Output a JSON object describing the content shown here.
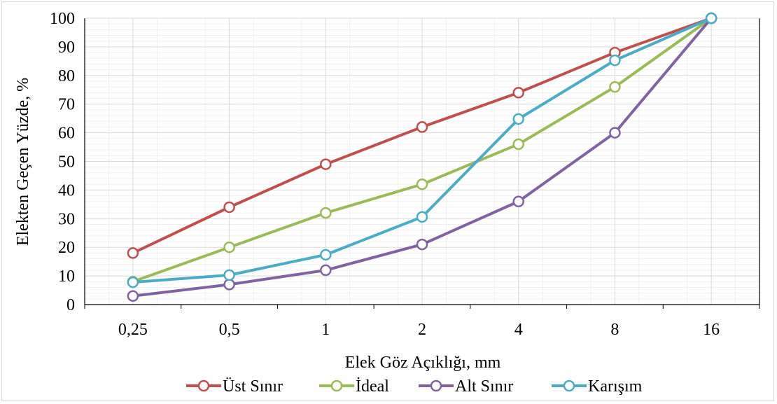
{
  "chart_data": {
    "type": "line",
    "categories": [
      "0,25",
      "0,5",
      "1",
      "2",
      "4",
      "8",
      "16"
    ],
    "xlabel": "Elek Göz Açıklığı, mm",
    "ylabel": "Elekten Geçen Yüzde, %",
    "ylim": [
      0,
      100
    ],
    "yticks": [
      "0",
      "10",
      "20",
      "30",
      "40",
      "50",
      "60",
      "70",
      "80",
      "90",
      "100"
    ],
    "grid": "on",
    "legend_position": "bottom",
    "series": [
      {
        "name": "Üst Sınır",
        "color": "#C0504D",
        "values": [
          18,
          34,
          49,
          62,
          74,
          88,
          100
        ]
      },
      {
        "name": "İdeal",
        "color": "#9BBB59",
        "values": [
          8,
          20,
          32,
          42,
          56,
          76,
          100
        ]
      },
      {
        "name": "Alt Sınır",
        "color": "#8064A2",
        "values": [
          3,
          7,
          12,
          21,
          36,
          60,
          100
        ]
      },
      {
        "name": "Karışım",
        "color": "#4BACC6",
        "values": [
          7.8,
          10.3,
          17.4,
          30.6,
          64.8,
          85.3,
          100
        ]
      }
    ]
  }
}
